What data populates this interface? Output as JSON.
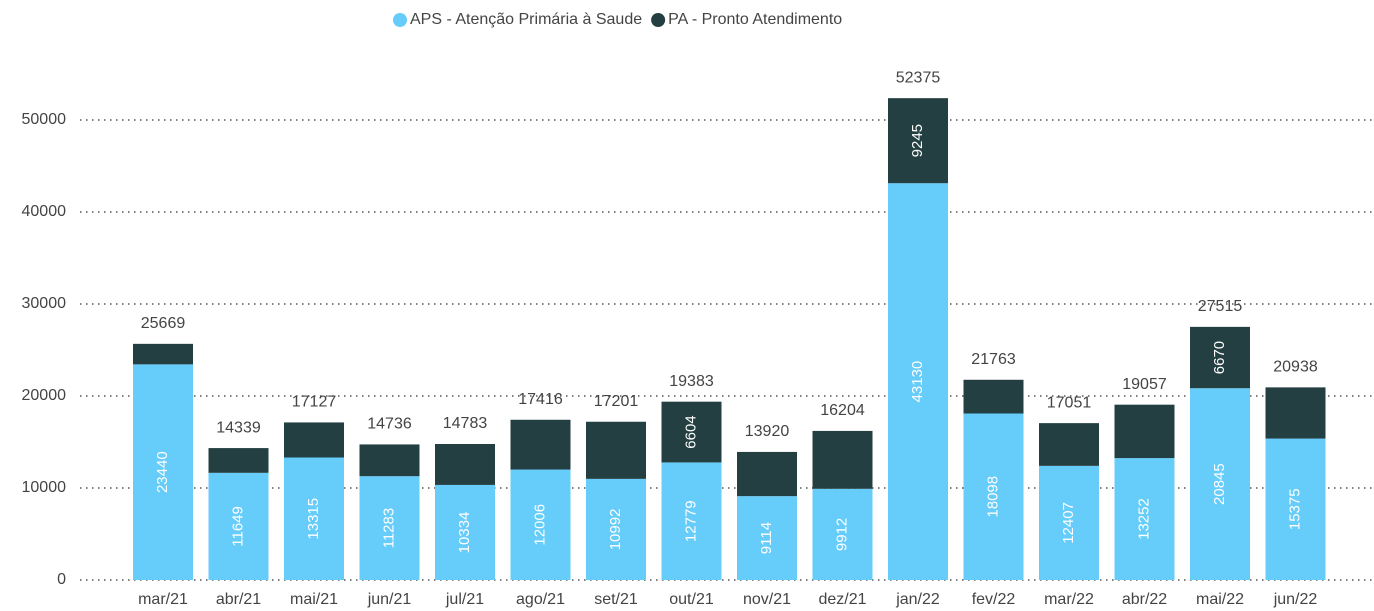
{
  "chart_data": {
    "type": "stacked_bar",
    "categories": [
      "mar/21",
      "abr/21",
      "mai/21",
      "jun/21",
      "jul/21",
      "ago/21",
      "set/21",
      "out/21",
      "nov/21",
      "dez/21",
      "jan/22",
      "fev/22",
      "mar/22",
      "abr/22",
      "mai/22",
      "jun/22"
    ],
    "series": [
      {
        "name": "APS - Atenção Primária à Saude",
        "color": "#66ccfa",
        "values": [
          23440,
          11649,
          13315,
          11283,
          10334,
          12006,
          10992,
          12779,
          9114,
          9912,
          43130,
          18098,
          12407,
          13252,
          20845,
          15375
        ]
      },
      {
        "name": "PA - Pronto Atendimento",
        "color": "#233f42",
        "values": [
          2229,
          2690,
          3812,
          3453,
          4449,
          5410,
          6209,
          6604,
          4806,
          6292,
          9245,
          3665,
          4644,
          5805,
          6670,
          5563
        ],
        "value_labels": [
          null,
          null,
          null,
          null,
          null,
          null,
          null,
          "6604",
          null,
          null,
          "9245",
          null,
          null,
          null,
          "6670",
          null
        ]
      }
    ],
    "totals": [
      25669,
      14339,
      17127,
      14736,
      14783,
      17416,
      17201,
      19383,
      13920,
      16204,
      52375,
      21763,
      17051,
      19057,
      27515,
      20938
    ],
    "ylim": [
      0,
      55000
    ],
    "yticks": [
      0,
      10000,
      20000,
      30000,
      40000,
      50000
    ],
    "grid": true,
    "legend": "top"
  }
}
